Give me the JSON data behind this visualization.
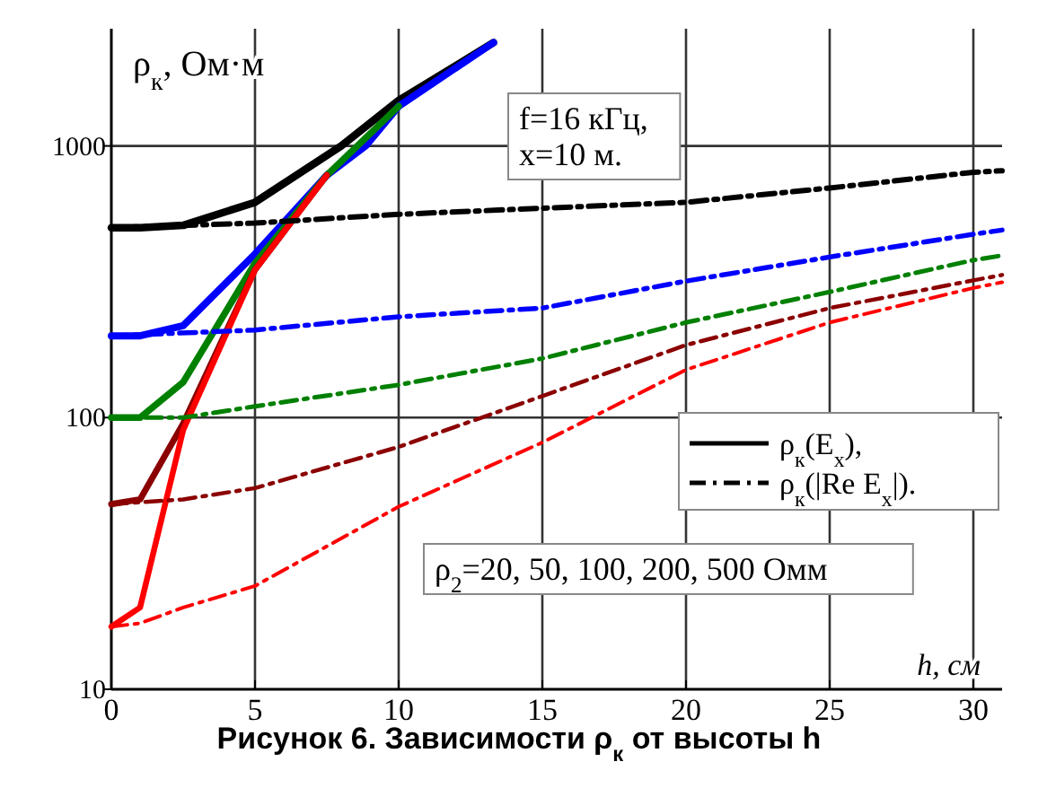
{
  "chart_data": {
    "type": "line",
    "title": "Рисунок 6. Зависимости ρ$_{к}$ от высоты h",
    "xlabel": "h, см",
    "ylabel": "ρ$_{к}$, Ом·м",
    "log": "y",
    "grid": true,
    "legend": "right",
    "xlim": [
      0,
      31
    ],
    "ylim": [
      10,
      2700
    ],
    "xticks": [
      0,
      5,
      10,
      15,
      20,
      25,
      30
    ],
    "yticks": [
      10,
      100,
      1000
    ],
    "annotations": [
      "f=16 кГц,\nx=10 м.",
      "ρ$_{2}$=20, 50, 100, 200, 500 Омм"
    ],
    "series": [
      {
        "name": "ρ$_{к}$(E$_{x}$),",
        "color": "#000000",
        "line_style": "solid",
        "x": [
          0,
          1,
          2.5,
          5,
          8,
          10,
          13.3
        ],
        "values": [
          500,
          500,
          510,
          620,
          1000,
          1470,
          2400
        ]
      },
      {
        "color": "#0000ff",
        "line_style": "solid",
        "x": [
          0,
          1,
          2.5,
          5,
          7.5,
          8.85,
          10,
          13.3
        ],
        "values": [
          200,
          200,
          218,
          400,
          780,
          1000,
          1400,
          2400
        ]
      },
      {
        "color": "#008000",
        "line_style": "solid",
        "x": [
          0,
          1,
          2.5,
          5,
          7.5,
          10
        ],
        "values": [
          100,
          100,
          135,
          370,
          780,
          1400
        ]
      },
      {
        "color": "#8b0000",
        "line_style": "solid",
        "x": [
          0,
          1,
          2.5,
          5,
          7.5
        ],
        "values": [
          48,
          50,
          95,
          350,
          780
        ]
      },
      {
        "color": "#ff0000",
        "line_style": "solid",
        "x": [
          0,
          1,
          2.5,
          5,
          7.5
        ],
        "values": [
          17,
          20,
          90,
          350,
          780
        ]
      },
      {
        "name": "ρ$_{к}$(|Re E$_{x}$|).",
        "color": "#000000",
        "line_style": "dashdot",
        "x": [
          0,
          5,
          10,
          15,
          20,
          25,
          30,
          31
        ],
        "values": [
          500,
          520,
          560,
          590,
          620,
          700,
          800,
          810
        ]
      },
      {
        "color": "#0000ff",
        "line_style": "dashdot",
        "x": [
          0,
          5,
          10,
          15,
          20,
          25,
          30,
          31
        ],
        "values": [
          200,
          210,
          235,
          253,
          318,
          390,
          473,
          490
        ]
      },
      {
        "color": "#008000",
        "line_style": "dashdot",
        "x": [
          0,
          2.5,
          5,
          10,
          15,
          20,
          25,
          30,
          31
        ],
        "values": [
          100,
          100,
          110,
          132,
          165,
          224,
          290,
          380,
          395
        ]
      },
      {
        "color": "#8b0000",
        "line_style": "dashdot",
        "x": [
          0,
          2.5,
          5,
          10,
          15,
          20,
          25,
          30,
          31
        ],
        "values": [
          48,
          50,
          55,
          78,
          120,
          185,
          253,
          320,
          335
        ]
      },
      {
        "color": "#ff0000",
        "line_style": "dashdot",
        "x": [
          0,
          1,
          2.5,
          5,
          10,
          15,
          20,
          25,
          30,
          31
        ],
        "values": [
          17,
          17.5,
          20,
          24,
          47,
          81,
          150,
          224,
          300,
          315
        ]
      }
    ]
  }
}
